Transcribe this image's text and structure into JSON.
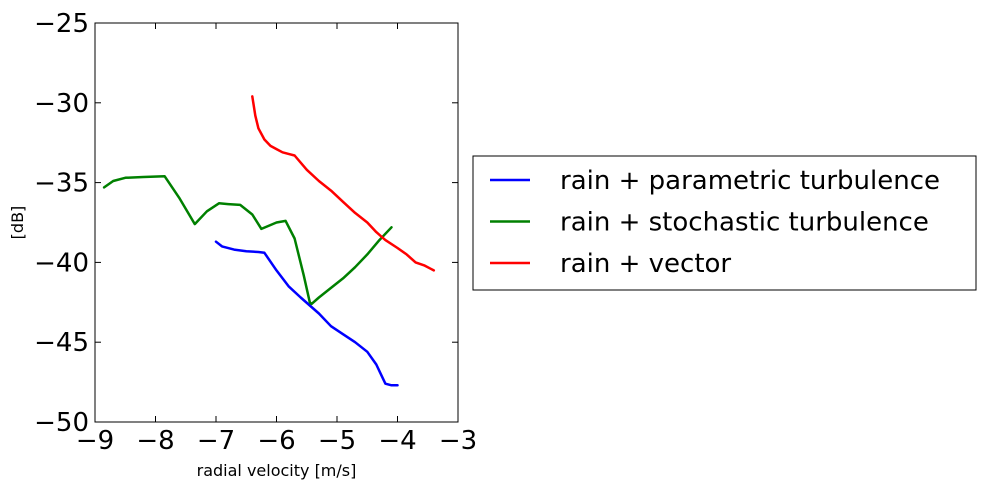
{
  "chart_data": {
    "type": "line",
    "title": "",
    "xlabel": "radial velocity [m/s]",
    "ylabel": "[dB]",
    "xlim": [
      -9,
      -3
    ],
    "ylim": [
      -50,
      -25
    ],
    "xticks": [
      -9,
      -8,
      -7,
      -6,
      -5,
      -4,
      -3
    ],
    "yticks": [
      -25,
      -30,
      -35,
      -40,
      -45,
      -50
    ],
    "xtick_labels": [
      "−9",
      "−8",
      "−7",
      "−6",
      "−5",
      "−4",
      "−3"
    ],
    "ytick_labels": [
      "−25",
      "−30",
      "−35",
      "−40",
      "−45",
      "−50"
    ],
    "grid": false,
    "legend_position": "outside-right",
    "series": [
      {
        "name": "rain + parametric turbulence",
        "color": "#0000ff",
        "x": [
          -7.0,
          -6.9,
          -6.7,
          -6.5,
          -6.3,
          -6.2,
          -6.0,
          -5.8,
          -5.6,
          -5.45,
          -5.3,
          -5.1,
          -4.9,
          -4.7,
          -4.5,
          -4.35,
          -4.2,
          -4.1,
          -4.0
        ],
        "y": [
          -38.7,
          -39.0,
          -39.2,
          -39.3,
          -39.35,
          -39.4,
          -40.5,
          -41.5,
          -42.2,
          -42.7,
          -43.2,
          -44.0,
          -44.5,
          -45.0,
          -45.6,
          -46.4,
          -47.6,
          -47.7,
          -47.7
        ]
      },
      {
        "name": "rain + stochastic turbulence",
        "color": "#008000",
        "x": [
          -8.85,
          -8.7,
          -8.5,
          -8.2,
          -7.85,
          -7.6,
          -7.35,
          -7.15,
          -6.95,
          -6.8,
          -6.6,
          -6.4,
          -6.25,
          -6.0,
          -5.85,
          -5.7,
          -5.55,
          -5.45,
          -5.42,
          -5.3,
          -5.1,
          -4.9,
          -4.7,
          -4.5,
          -4.3,
          -4.1
        ],
        "y": [
          -35.3,
          -34.9,
          -34.7,
          -34.65,
          -34.6,
          -36.0,
          -37.6,
          -36.8,
          -36.3,
          -36.35,
          -36.4,
          -37.0,
          -37.9,
          -37.5,
          -37.4,
          -38.5,
          -40.8,
          -42.5,
          -42.6,
          -42.2,
          -41.6,
          -41.0,
          -40.3,
          -39.5,
          -38.6,
          -37.8
        ]
      },
      {
        "name": "rain + vector",
        "color": "#ff0000",
        "x": [
          -6.4,
          -6.35,
          -6.3,
          -6.2,
          -6.1,
          -6.0,
          -5.9,
          -5.8,
          -5.7,
          -5.5,
          -5.3,
          -5.1,
          -4.9,
          -4.7,
          -4.5,
          -4.35,
          -4.2,
          -4.0,
          -3.85,
          -3.7,
          -3.55,
          -3.45,
          -3.4
        ],
        "y": [
          -29.6,
          -30.8,
          -31.6,
          -32.3,
          -32.7,
          -32.9,
          -33.1,
          -33.2,
          -33.3,
          -34.2,
          -34.9,
          -35.5,
          -36.2,
          -36.9,
          -37.5,
          -38.1,
          -38.6,
          -39.1,
          -39.5,
          -40.0,
          -40.2,
          -40.4,
          -40.5
        ]
      }
    ]
  }
}
